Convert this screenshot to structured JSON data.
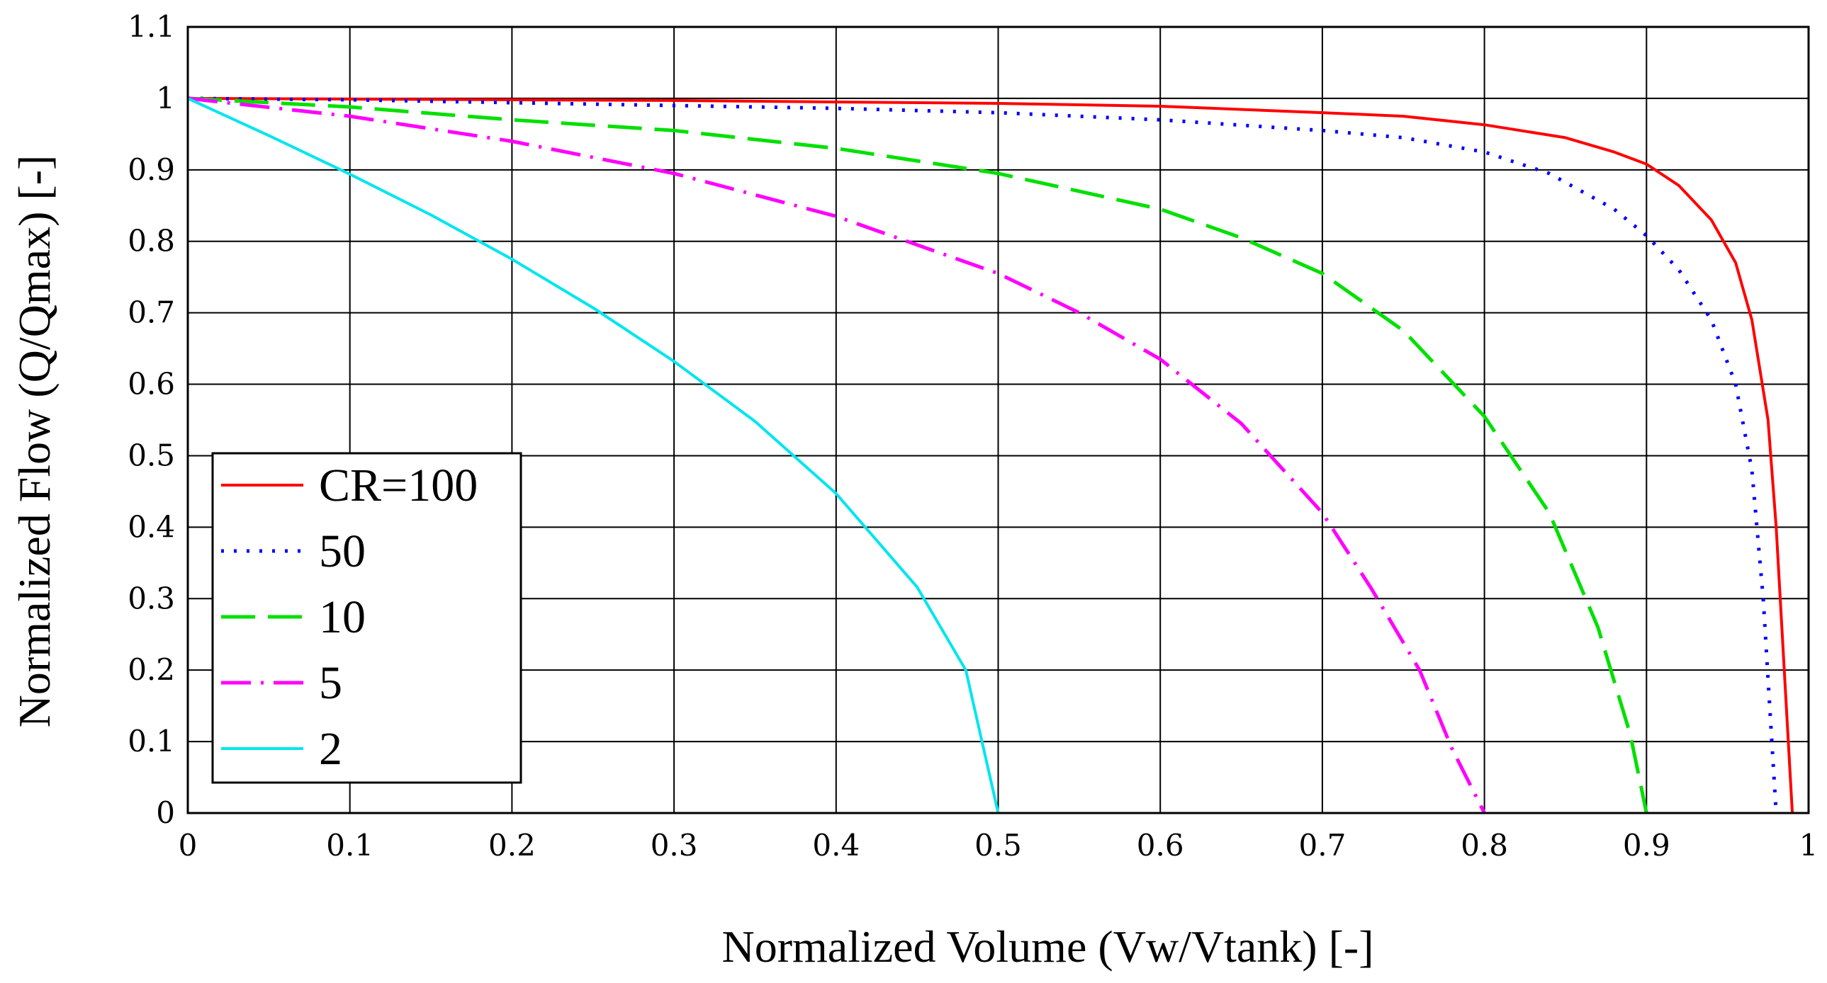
{
  "chart_data": {
    "type": "line",
    "title": "",
    "xlabel": "Normalized Volume (Vw/Vtank) [-]",
    "ylabel": "Normalized Flow (Q/Qmax) [-]",
    "xlim": [
      0,
      1
    ],
    "ylim": [
      0,
      1.1
    ],
    "grid": true,
    "legend_position": "bottom-left",
    "x_ticks": [
      0,
      0.1,
      0.2,
      0.3,
      0.4,
      0.5,
      0.6,
      0.7,
      0.8,
      0.9,
      1
    ],
    "x_tick_labels": [
      "0",
      "0.1",
      "0.2",
      "0.3",
      "0.4",
      "0.5",
      "0.6",
      "0.7",
      "0.8",
      "0.9",
      "1"
    ],
    "y_ticks": [
      0,
      0.1,
      0.2,
      0.3,
      0.4,
      0.5,
      0.6,
      0.7,
      0.8,
      0.9,
      1,
      1.1
    ],
    "y_tick_labels": [
      "0",
      "0.1",
      "0.2",
      "0.3",
      "0.4",
      "0.5",
      "0.6",
      "0.7",
      "0.8",
      "0.9",
      "1",
      "1.1"
    ],
    "series": [
      {
        "name": "CR=100",
        "color": "#ff0000",
        "dash": "solid",
        "x": [
          0,
          0.1,
          0.2,
          0.3,
          0.4,
          0.5,
          0.6,
          0.7,
          0.75,
          0.8,
          0.85,
          0.88,
          0.9,
          0.92,
          0.94,
          0.955,
          0.965,
          0.975,
          0.98,
          0.985,
          0.99
        ],
        "y": [
          1.0,
          0.999,
          0.998,
          0.997,
          0.995,
          0.993,
          0.989,
          0.98,
          0.975,
          0.963,
          0.945,
          0.925,
          0.908,
          0.878,
          0.83,
          0.77,
          0.69,
          0.55,
          0.4,
          0.2,
          0.0
        ]
      },
      {
        "name": "50",
        "color": "#0000ff",
        "dash": "dot",
        "x": [
          0,
          0.1,
          0.2,
          0.3,
          0.4,
          0.5,
          0.6,
          0.7,
          0.75,
          0.8,
          0.84,
          0.88,
          0.9,
          0.92,
          0.94,
          0.955,
          0.965,
          0.972,
          0.976,
          0.98
        ],
        "y": [
          1.0,
          0.998,
          0.994,
          0.99,
          0.986,
          0.98,
          0.97,
          0.955,
          0.945,
          0.925,
          0.895,
          0.845,
          0.808,
          0.76,
          0.69,
          0.6,
          0.48,
          0.3,
          0.15,
          0.0
        ]
      },
      {
        "name": "10",
        "color": "#00e000",
        "dash": "dash",
        "x": [
          0,
          0.1,
          0.2,
          0.3,
          0.4,
          0.5,
          0.6,
          0.65,
          0.7,
          0.75,
          0.8,
          0.84,
          0.87,
          0.89,
          0.9
        ],
        "y": [
          1.0,
          0.988,
          0.97,
          0.955,
          0.93,
          0.895,
          0.845,
          0.805,
          0.755,
          0.675,
          0.555,
          0.42,
          0.26,
          0.11,
          0.0
        ]
      },
      {
        "name": "5",
        "color": "#ff00ff",
        "dash": "dashdot",
        "x": [
          0,
          0.1,
          0.2,
          0.3,
          0.4,
          0.45,
          0.5,
          0.55,
          0.6,
          0.65,
          0.7,
          0.73,
          0.76,
          0.78,
          0.8
        ],
        "y": [
          1.0,
          0.975,
          0.94,
          0.895,
          0.835,
          0.795,
          0.755,
          0.7,
          0.635,
          0.545,
          0.42,
          0.315,
          0.2,
          0.09,
          0.0
        ]
      },
      {
        "name": "2",
        "color": "#00e5ee",
        "dash": "solid",
        "x": [
          0,
          0.05,
          0.1,
          0.15,
          0.2,
          0.25,
          0.3,
          0.35,
          0.4,
          0.45,
          0.48,
          0.5
        ],
        "y": [
          1.0,
          0.948,
          0.894,
          0.837,
          0.775,
          0.707,
          0.632,
          0.548,
          0.447,
          0.316,
          0.2,
          0.0
        ]
      }
    ]
  }
}
